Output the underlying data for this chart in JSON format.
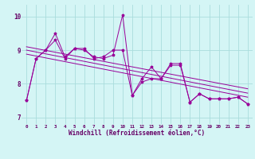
{
  "xlabel": "Windchill (Refroidissement éolien,°C)",
  "bg_color": "#d4f5f5",
  "line_color": "#990099",
  "grid_color": "#aadddd",
  "axis_color": "#660066",
  "xlim": [
    -0.5,
    23.5
  ],
  "ylim": [
    6.8,
    10.35
  ],
  "yticks": [
    7,
    8,
    9,
    10
  ],
  "xticks": [
    0,
    1,
    2,
    3,
    4,
    5,
    6,
    7,
    8,
    9,
    10,
    11,
    12,
    13,
    14,
    15,
    16,
    17,
    18,
    19,
    20,
    21,
    22,
    23
  ],
  "series1_x": [
    0,
    1,
    2,
    3,
    4,
    5,
    6,
    7,
    8,
    9,
    10,
    11,
    12,
    13,
    14,
    15,
    16,
    17,
    18,
    19,
    20,
    21,
    22,
    23
  ],
  "series1_y": [
    7.5,
    8.75,
    9.0,
    9.5,
    8.8,
    9.05,
    9.0,
    8.8,
    8.75,
    8.85,
    10.05,
    7.65,
    8.05,
    8.15,
    8.15,
    8.55,
    8.55,
    7.45,
    7.7,
    7.55,
    7.55,
    7.55,
    7.6,
    7.4
  ],
  "series2_x": [
    0,
    1,
    2,
    3,
    4,
    5,
    6,
    7,
    8,
    9,
    10,
    11,
    12,
    13,
    14,
    15,
    16,
    17,
    18,
    19,
    20,
    21,
    22,
    23
  ],
  "series2_y": [
    7.5,
    8.75,
    9.0,
    9.3,
    8.75,
    9.05,
    9.05,
    8.75,
    8.8,
    9.0,
    9.0,
    7.65,
    8.15,
    8.5,
    8.15,
    8.6,
    8.6,
    7.45,
    7.7,
    7.55,
    7.55,
    7.55,
    7.6,
    7.4
  ],
  "trend1_x": [
    0,
    23
  ],
  "trend1_y": [
    9.1,
    7.85
  ],
  "trend2_x": [
    0,
    23
  ],
  "trend2_y": [
    9.0,
    7.72
  ],
  "trend3_x": [
    0,
    23
  ],
  "trend3_y": [
    8.88,
    7.6
  ]
}
